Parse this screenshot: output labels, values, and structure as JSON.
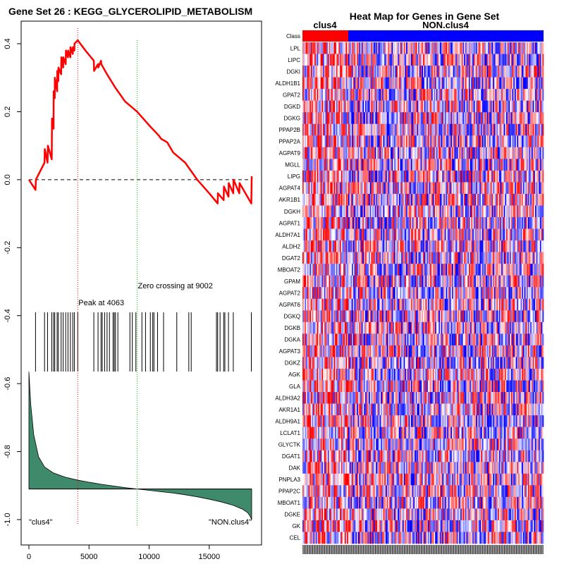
{
  "chart_data": [
    {
      "type": "line",
      "title": "Gene Set  26 : KEGG_GLYCEROLIPID_METABOLISM",
      "x_ticks": [
        0,
        5000,
        10000,
        15000
      ],
      "y_ticks": [
        0.4,
        0.2,
        0.0,
        -0.2,
        -0.4,
        -0.6,
        -0.8,
        -1.0
      ],
      "y_tick_labels": [
        "0.4",
        "0.2",
        "0.0",
        "-0.2",
        "-0.4",
        "-0.6",
        "-0.8",
        "-1.0"
      ],
      "xlim": [
        0,
        18500
      ],
      "ylim": [
        -1.02,
        0.43
      ],
      "running_es": {
        "x": [
          0,
          550,
          580,
          1300,
          1320,
          1550,
          1580,
          1900,
          1920,
          2050,
          2060,
          2150,
          2160,
          2350,
          2360,
          2450,
          2460,
          2680,
          2700,
          2850,
          2860,
          3060,
          3080,
          3250,
          3260,
          3450,
          3460,
          3650,
          3660,
          3780,
          3790,
          4063,
          4700,
          5400,
          5420,
          5750,
          5770,
          6000,
          6020,
          6500,
          7200,
          8000,
          9002,
          10000,
          10800,
          11000,
          11500,
          12000,
          13000,
          14000,
          15000,
          15700,
          15720,
          16200,
          16220,
          16600,
          16620,
          17000,
          17020,
          17500,
          17520,
          18500,
          18530
        ],
        "y": [
          0.0,
          -0.03,
          0.0,
          0.05,
          0.09,
          0.05,
          0.1,
          0.06,
          0.18,
          0.15,
          0.26,
          0.24,
          0.3,
          0.26,
          0.32,
          0.29,
          0.33,
          0.31,
          0.36,
          0.33,
          0.36,
          0.34,
          0.38,
          0.36,
          0.38,
          0.36,
          0.39,
          0.37,
          0.39,
          0.38,
          0.4,
          0.41,
          0.38,
          0.35,
          0.32,
          0.34,
          0.33,
          0.35,
          0.34,
          0.31,
          0.27,
          0.23,
          0.2,
          0.16,
          0.13,
          0.12,
          0.11,
          0.08,
          0.05,
          0.0,
          -0.04,
          -0.07,
          -0.04,
          -0.06,
          -0.02,
          -0.05,
          -0.01,
          -0.04,
          0.0,
          -0.04,
          -0.01,
          -0.07,
          0.01
        ]
      },
      "hit_positions": [
        550,
        1300,
        1550,
        1900,
        2050,
        2150,
        2350,
        2450,
        2680,
        2850,
        3060,
        3250,
        3450,
        3650,
        3780,
        4063,
        5400,
        5750,
        6000,
        6100,
        6300,
        6500,
        6700,
        7000,
        7100,
        7200,
        7400,
        8400,
        8600,
        8900,
        9400,
        9700,
        10100,
        10300,
        10400,
        10700,
        11200,
        12300,
        13300,
        13500,
        15600,
        15700,
        15900,
        16200,
        16300,
        16600,
        17000,
        18500
      ],
      "ranked_metric": {
        "x": [
          0,
          150,
          400,
          800,
          1300,
          2000,
          3000,
          4063,
          5000,
          6000,
          7000,
          8000,
          9002,
          10000,
          11000,
          12000,
          13000,
          14000,
          15000,
          16000,
          17000,
          17800,
          18200,
          18400,
          18530
        ],
        "y": [
          -0.565,
          -0.66,
          -0.75,
          -0.815,
          -0.845,
          -0.862,
          -0.875,
          -0.884,
          -0.89,
          -0.896,
          -0.901,
          -0.906,
          -0.91,
          -0.914,
          -0.918,
          -0.922,
          -0.927,
          -0.933,
          -0.94,
          -0.948,
          -0.958,
          -0.97,
          -0.98,
          -0.99,
          -1.0
        ]
      },
      "baseline_metric": -0.91,
      "peak_x": 4063,
      "zero_crossing_x": 9002,
      "peak_label": "Peak at 4063",
      "zero_label": "Zero crossing at 9002",
      "left_label": "\"clus4\"",
      "right_label": "\"NON.clus4\""
    },
    {
      "type": "heatmap",
      "title": "Heat Map for Genes in Gene Set",
      "class_row_label": "Class",
      "groups": [
        {
          "name": "clus4",
          "color": "#ff0000",
          "n": 38
        },
        {
          "name": "NON.clus4",
          "color": "#0000ff",
          "n": 162
        }
      ],
      "genes": [
        "LPL",
        "LIPC",
        "DGKI",
        "ALDH1B1",
        "GPAT2",
        "DGKD",
        "DGKG",
        "PPAP2B",
        "PPAP2A",
        "AGPAT9",
        "MGLL",
        "LIPG",
        "AGPAT4",
        "AKR1B1",
        "DGKH",
        "AGPAT1",
        "ALDH7A1",
        "ALDH2",
        "DGAT2",
        "MBOAT2",
        "GPAM",
        "AGPAT2",
        "AGPAT6",
        "DGKQ",
        "DGKB",
        "DGKA",
        "AGPAT3",
        "DGKZ",
        "AGK",
        "GLA",
        "ALDH3A2",
        "AKR1A1",
        "ALDH9A1",
        "LCLAT1",
        "GLYCTK",
        "DGAT1",
        "DAK",
        "PNPLA3",
        "PPAP2C",
        "MBOAT1",
        "DGKE",
        "GK",
        "CEL"
      ]
    }
  ],
  "colors": {
    "es_line": "#ff0000",
    "hits": "#000000",
    "metric_fill": "#3e8a6a",
    "peak_line": "#ff0000",
    "zero_line": "#00cc00",
    "high": "#ff0000",
    "low": "#0000ff"
  }
}
